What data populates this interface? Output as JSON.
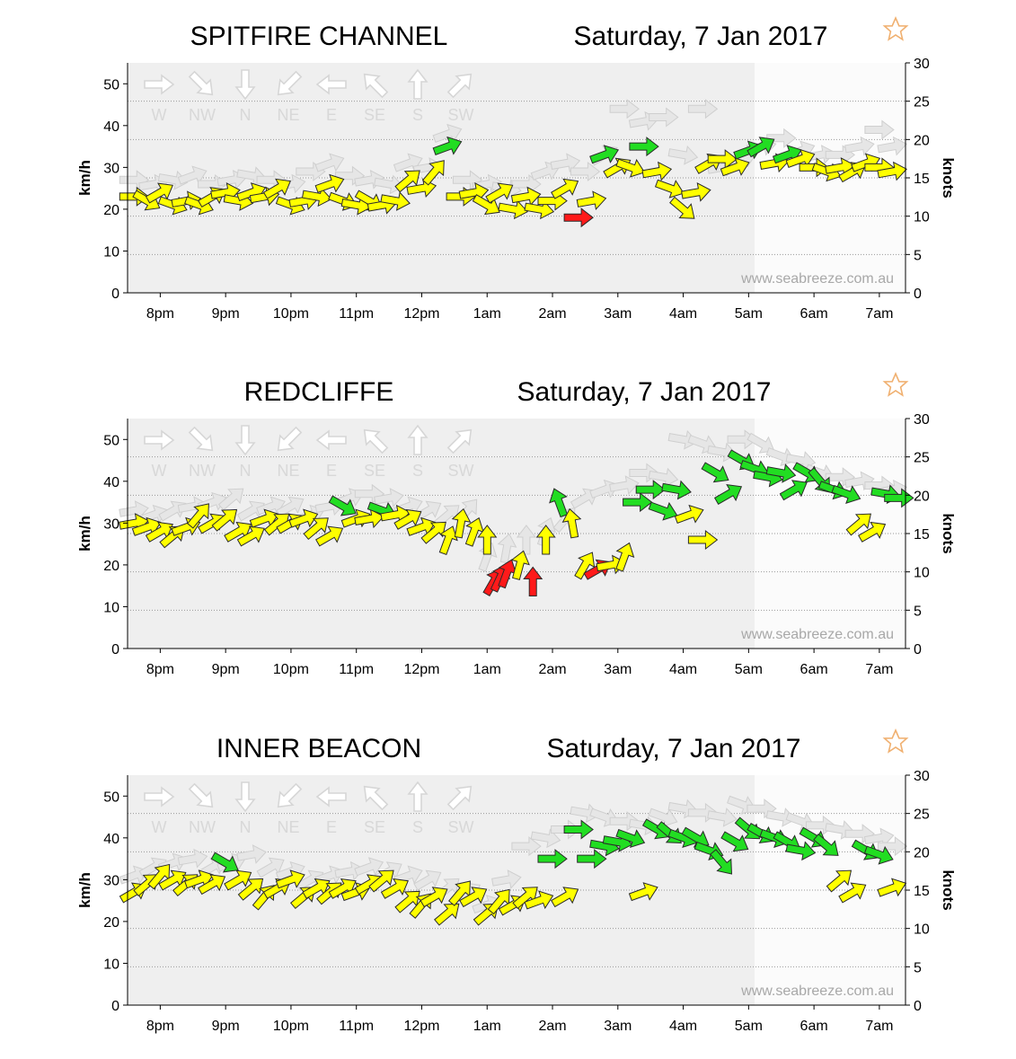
{
  "colors": {
    "calm": "#ff1a1a",
    "moderate": "#ffff00",
    "strong": "#22dd22",
    "ghost": "#e6e6e6",
    "plot_background": "#efefef",
    "favourite_star": "#f0b070"
  },
  "icons": {
    "favourite": "star-icon",
    "wind_direction": "arrow-icon"
  },
  "compass_legend": {
    "labels": [
      "W",
      "NW",
      "N",
      "NE",
      "E",
      "SE",
      "S",
      "SW"
    ],
    "directions": [
      270,
      315,
      0,
      45,
      90,
      135,
      180,
      225
    ]
  },
  "watermark": "www.seabreeze.com.au",
  "chart_data": [
    {
      "type": "scatter",
      "station": "SPITFIRE CHANNEL",
      "date": "Saturday, 7 Jan 2017",
      "ylabel": "km/h",
      "y2label": "knots",
      "ylim": [
        0,
        55
      ],
      "y2lim": [
        0,
        30
      ],
      "yticks": [
        "0",
        "10",
        "20",
        "30",
        "40",
        "50"
      ],
      "y2ticks": [
        "0",
        "5",
        "10",
        "15",
        "20",
        "25",
        "30"
      ],
      "xlim": [
        19.5,
        31.4
      ],
      "xticks": [
        20,
        21,
        22,
        23,
        24,
        25,
        26,
        27,
        28,
        29,
        30,
        31
      ],
      "xticklabels": [
        "8pm",
        "9pm",
        "10pm",
        "11pm",
        "12pm",
        "1am",
        "2am",
        "3am",
        "4am",
        "5am",
        "6am",
        "7am"
      ],
      "series": [
        {
          "name": "average wind",
          "x": [
            19.6,
            19.8,
            20,
            20.2,
            20.4,
            20.6,
            20.8,
            21,
            21.2,
            21.4,
            21.6,
            21.8,
            22,
            22.2,
            22.4,
            22.6,
            22.8,
            23,
            23.2,
            23.4,
            23.6,
            23.8,
            24,
            24.2,
            24.4,
            24.6,
            24.8,
            25,
            25.2,
            25.4,
            25.6,
            25.8,
            26,
            26.2,
            26.4,
            26.6,
            26.8,
            27,
            27.2,
            27.4,
            27.6,
            27.8,
            28,
            28.2,
            28.4,
            28.6,
            28.8,
            29,
            29.2,
            29.4,
            29.6,
            29.8,
            30,
            30.2,
            30.4,
            30.6,
            30.8,
            31,
            31.2
          ],
          "y": [
            23,
            22,
            24,
            21,
            22,
            21,
            23,
            24,
            22,
            24,
            23,
            25,
            21,
            22,
            23,
            26,
            22,
            21,
            22,
            21,
            22,
            27,
            25,
            29,
            35,
            23,
            24,
            21,
            24,
            20,
            23,
            20,
            22,
            25,
            18,
            22,
            33,
            30,
            30,
            35,
            29,
            25,
            20,
            24,
            31,
            32,
            30,
            34,
            35,
            31,
            33,
            32,
            30,
            29,
            30,
            29,
            31,
            30,
            29
          ],
          "dir": [
            270,
            300,
            240,
            290,
            260,
            290,
            240,
            260,
            280,
            250,
            260,
            240,
            290,
            260,
            280,
            250,
            290,
            280,
            300,
            260,
            280,
            230,
            260,
            220,
            250,
            270,
            260,
            300,
            240,
            280,
            260,
            280,
            270,
            240,
            270,
            260,
            250,
            240,
            290,
            270,
            260,
            290,
            310,
            260,
            240,
            270,
            250,
            250,
            240,
            260,
            250,
            250,
            270,
            290,
            260,
            240,
            250,
            270,
            260
          ]
        },
        {
          "name": "gust",
          "x": [
            19.6,
            19.9,
            20.2,
            20.5,
            20.8,
            21.1,
            21.4,
            21.7,
            22,
            22.3,
            22.6,
            22.9,
            23.2,
            23.5,
            23.8,
            24.1,
            24.4,
            24.7,
            25,
            25.3,
            25.6,
            25.9,
            26.2,
            26.5,
            26.8,
            27.1,
            27.4,
            27.7,
            28,
            28.3,
            28.6,
            28.9,
            29.2,
            29.5,
            29.8,
            30.1,
            30.4,
            30.7,
            31,
            31.2
          ],
          "y": [
            27,
            26,
            27,
            28,
            26,
            27,
            28,
            27,
            26,
            29,
            31,
            28,
            27,
            26,
            31,
            30,
            38,
            27,
            26,
            25,
            26,
            29,
            31,
            29,
            33,
            44,
            41,
            42,
            33,
            44,
            30,
            32,
            35,
            37,
            34,
            33,
            33,
            35,
            39,
            35
          ],
          "dir": [
            270,
            260,
            280,
            250,
            270,
            260,
            280,
            270,
            260,
            270,
            250,
            270,
            260,
            280,
            250,
            260,
            250,
            270,
            260,
            280,
            270,
            250,
            260,
            270,
            240,
            270,
            260,
            270,
            280,
            270,
            260,
            250,
            260,
            270,
            250,
            260,
            270,
            260,
            270,
            260
          ]
        }
      ]
    },
    {
      "type": "scatter",
      "station": "REDCLIFFE",
      "date": "Saturday, 7 Jan 2017",
      "ylabel": "km/h",
      "y2label": "knots",
      "ylim": [
        0,
        55
      ],
      "y2lim": [
        0,
        30
      ],
      "yticks": [
        "0",
        "10",
        "20",
        "30",
        "40",
        "50"
      ],
      "y2ticks": [
        "0",
        "5",
        "10",
        "15",
        "20",
        "25",
        "30"
      ],
      "xlim": [
        19.5,
        31.4
      ],
      "xticks": [
        20,
        21,
        22,
        23,
        24,
        25,
        26,
        27,
        28,
        29,
        30,
        31
      ],
      "xticklabels": [
        "8pm",
        "9pm",
        "10pm",
        "11pm",
        "12pm",
        "1am",
        "2am",
        "3am",
        "4am",
        "5am",
        "6am",
        "7am"
      ],
      "series": [
        {
          "name": "average wind",
          "x": [
            19.6,
            19.8,
            20,
            20.2,
            20.4,
            20.6,
            20.8,
            21,
            21.2,
            21.4,
            21.6,
            21.8,
            22,
            22.2,
            22.4,
            22.6,
            22.8,
            23,
            23.2,
            23.4,
            23.6,
            23.8,
            24,
            24.2,
            24.4,
            24.6,
            24.8,
            25,
            25.1,
            25.2,
            25.3,
            25.5,
            25.7,
            25.9,
            26.1,
            26.3,
            26.5,
            26.7,
            26.9,
            27.1,
            27.3,
            27.5,
            27.7,
            27.9,
            28.1,
            28.3,
            28.5,
            28.7,
            28.9,
            29.1,
            29.3,
            29.5,
            29.7,
            29.9,
            30.1,
            30.3,
            30.5,
            30.7,
            30.9,
            31.1,
            31.3
          ],
          "y": [
            30,
            29,
            28,
            27,
            29,
            32,
            30,
            31,
            28,
            27,
            31,
            30,
            30,
            31,
            29,
            27,
            34,
            31,
            31,
            33,
            32,
            31,
            29,
            28,
            26,
            30,
            28,
            26,
            16,
            17,
            18,
            20,
            16,
            26,
            35,
            30,
            20,
            19,
            20,
            22,
            35,
            38,
            33,
            38,
            32,
            26,
            42,
            37,
            45,
            43,
            41,
            42,
            38,
            42,
            40,
            38,
            37,
            30,
            28,
            37,
            36
          ],
          "dir": [
            260,
            250,
            240,
            230,
            250,
            220,
            240,
            230,
            240,
            240,
            250,
            230,
            240,
            250,
            230,
            240,
            300,
            250,
            260,
            290,
            260,
            240,
            250,
            230,
            200,
            190,
            200,
            180,
            210,
            205,
            200,
            195,
            180,
            180,
            160,
            170,
            210,
            240,
            260,
            200,
            270,
            270,
            290,
            280,
            250,
            270,
            300,
            240,
            300,
            290,
            280,
            280,
            240,
            300,
            320,
            290,
            290,
            230,
            240,
            280,
            270
          ]
        },
        {
          "name": "gust",
          "x": [
            19.6,
            19.9,
            20.2,
            20.5,
            20.8,
            21.1,
            21.4,
            21.7,
            22,
            22.3,
            22.6,
            22.9,
            23.2,
            23.5,
            23.8,
            24.1,
            24.4,
            24.7,
            25,
            25.3,
            25.6,
            25.9,
            26.2,
            26.5,
            26.8,
            27.1,
            27.4,
            27.7,
            28,
            28.3,
            28.6,
            28.9,
            29.2,
            29.5,
            29.8,
            30.1,
            30.4,
            30.7,
            31,
            31.2
          ],
          "y": [
            33,
            32,
            33,
            34,
            35,
            36,
            33,
            34,
            34,
            32,
            34,
            36,
            37,
            36,
            34,
            33,
            32,
            33,
            22,
            24,
            26,
            28,
            31,
            36,
            38,
            39,
            42,
            41,
            50,
            49,
            47,
            50,
            49,
            46,
            45,
            42,
            41,
            40,
            39,
            38
          ],
          "dir": [
            260,
            250,
            240,
            260,
            250,
            230,
            240,
            250,
            240,
            250,
            260,
            250,
            270,
            260,
            250,
            240,
            230,
            220,
            200,
            190,
            180,
            200,
            220,
            240,
            250,
            260,
            270,
            280,
            280,
            290,
            280,
            270,
            300,
            290,
            280,
            290,
            270,
            260,
            270,
            260
          ]
        }
      ]
    },
    {
      "type": "scatter",
      "station": "INNER BEACON",
      "date": "Saturday, 7 Jan 2017",
      "ylabel": "km/h",
      "y2label": "knots",
      "ylim": [
        0,
        55
      ],
      "y2lim": [
        0,
        30
      ],
      "yticks": [
        "0",
        "10",
        "20",
        "30",
        "40",
        "50"
      ],
      "y2ticks": [
        "0",
        "5",
        "10",
        "15",
        "20",
        "25",
        "30"
      ],
      "xlim": [
        19.5,
        31.4
      ],
      "xticks": [
        20,
        21,
        22,
        23,
        24,
        25,
        26,
        27,
        28,
        29,
        30,
        31
      ],
      "xticklabels": [
        "8pm",
        "9pm",
        "10pm",
        "11pm",
        "12pm",
        "1am",
        "2am",
        "3am",
        "4am",
        "5am",
        "6am",
        "7am"
      ],
      "series": [
        {
          "name": "average wind",
          "x": [
            19.6,
            19.8,
            20,
            20.2,
            20.4,
            20.6,
            20.8,
            21,
            21.2,
            21.4,
            21.6,
            21.8,
            22,
            22.2,
            22.4,
            22.6,
            22.8,
            23,
            23.2,
            23.4,
            23.6,
            23.8,
            24,
            24.2,
            24.4,
            24.6,
            24.8,
            25,
            25.2,
            25.4,
            25.6,
            25.8,
            26,
            26.2,
            26.4,
            26.6,
            26.8,
            27,
            27.2,
            27.4,
            27.6,
            27.8,
            28,
            28.2,
            28.4,
            28.6,
            28.8,
            29,
            29.2,
            29.4,
            29.6,
            29.8,
            30,
            30.2,
            30.4,
            30.6,
            30.8,
            31,
            31.2
          ],
          "y": [
            27,
            29,
            31,
            30,
            29,
            30,
            29,
            34,
            30,
            28,
            26,
            28,
            30,
            26,
            28,
            27,
            28,
            27,
            29,
            30,
            28,
            25,
            24,
            26,
            22,
            27,
            26,
            22,
            25,
            24,
            26,
            25,
            35,
            26,
            42,
            35,
            38,
            39,
            40,
            27,
            42,
            41,
            40,
            40,
            37,
            34,
            39,
            42,
            41,
            40,
            39,
            37,
            40,
            38,
            30,
            27,
            37,
            36,
            28
          ],
          "dir": [
            240,
            230,
            220,
            240,
            230,
            250,
            240,
            300,
            240,
            230,
            220,
            240,
            250,
            230,
            240,
            230,
            240,
            250,
            240,
            230,
            240,
            230,
            220,
            240,
            230,
            220,
            240,
            230,
            220,
            240,
            230,
            250,
            270,
            240,
            270,
            270,
            280,
            280,
            290,
            250,
            300,
            310,
            290,
            300,
            290,
            320,
            300,
            310,
            300,
            290,
            300,
            280,
            300,
            310,
            230,
            240,
            300,
            290,
            250
          ]
        },
        {
          "name": "gust",
          "x": [
            19.6,
            19.9,
            20.2,
            20.5,
            20.8,
            21.1,
            21.4,
            21.7,
            22,
            22.3,
            22.6,
            22.9,
            23.2,
            23.5,
            23.8,
            24.1,
            24.4,
            24.7,
            25,
            25.3,
            25.6,
            25.9,
            26.2,
            26.5,
            26.8,
            27.1,
            27.4,
            27.7,
            28,
            28.3,
            28.6,
            28.9,
            29.2,
            29.5,
            29.8,
            30.1,
            30.4,
            30.7,
            31,
            31.2
          ],
          "y": [
            31,
            33,
            34,
            35,
            33,
            34,
            36,
            33,
            32,
            30,
            31,
            32,
            33,
            32,
            31,
            30,
            28,
            27,
            24,
            30,
            38,
            40,
            42,
            46,
            45,
            44,
            43,
            45,
            47,
            46,
            45,
            48,
            47,
            45,
            44,
            43,
            42,
            41,
            40,
            38
          ],
          "dir": [
            250,
            240,
            250,
            260,
            240,
            250,
            260,
            240,
            250,
            240,
            250,
            260,
            250,
            240,
            250,
            240,
            230,
            240,
            250,
            260,
            270,
            280,
            270,
            280,
            290,
            270,
            280,
            290,
            280,
            270,
            280,
            290,
            270,
            280,
            290,
            270,
            280,
            270,
            260,
            270
          ]
        }
      ]
    }
  ]
}
